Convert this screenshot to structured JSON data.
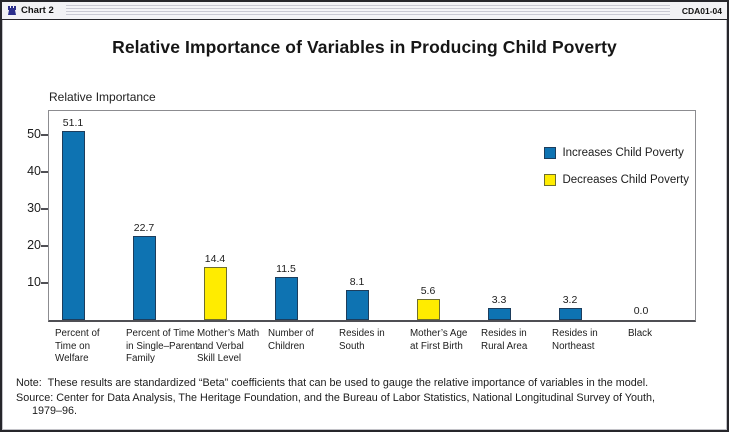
{
  "window": {
    "icon": "chart-window-icon",
    "title": "Chart 2",
    "doc_code": "CDA01-04"
  },
  "chart_data": {
    "type": "bar",
    "title": "Relative Importance of Variables in Producing Child Poverty",
    "ylabel": "Relative Importance",
    "xlabel": "",
    "categories": [
      "Percent of\nTime on\nWelfare",
      "Percent of Time\nin Single–Parent\nFamily",
      "Mother’s Math\nand Verbal\nSkill Level",
      "Number of\nChildren",
      "Resides in\nSouth",
      "Mother’s Age\nat First Birth",
      "Resides in\nRural Area",
      "Resides in\nNortheast",
      "Black"
    ],
    "values": [
      51.1,
      22.7,
      14.4,
      11.5,
      8.1,
      5.6,
      3.3,
      3.2,
      0.0
    ],
    "bar_types": [
      "increase",
      "increase",
      "decrease",
      "increase",
      "increase",
      "decrease",
      "increase",
      "increase",
      "increase"
    ],
    "y_ticks": [
      10,
      20,
      30,
      40,
      50
    ],
    "ylim": [
      0,
      57
    ],
    "grid": false,
    "legend": {
      "position": "upper-right-inside",
      "items": [
        {
          "key": "increase",
          "label": "Increases Child Poverty",
          "color": "#0e73b2"
        },
        {
          "key": "decrease",
          "label": "Decreases Child Poverty",
          "color": "#ffec00"
        }
      ]
    },
    "colors": {
      "increase": "#0e73b2",
      "increase_border": "#1d3d5c",
      "decrease": "#ffec00",
      "decrease_border": "#6e6e2e"
    }
  },
  "footer": {
    "note": "Note:  These results are standardized “Beta” coefficients that can be used to gauge the relative importance of variables in the model.",
    "source_line1": "Source: Center for Data Analysis, The Heritage Foundation, and the Bureau of Labor Statistics, National Longitudinal Survey of Youth,",
    "source_line2": "1979–96."
  }
}
